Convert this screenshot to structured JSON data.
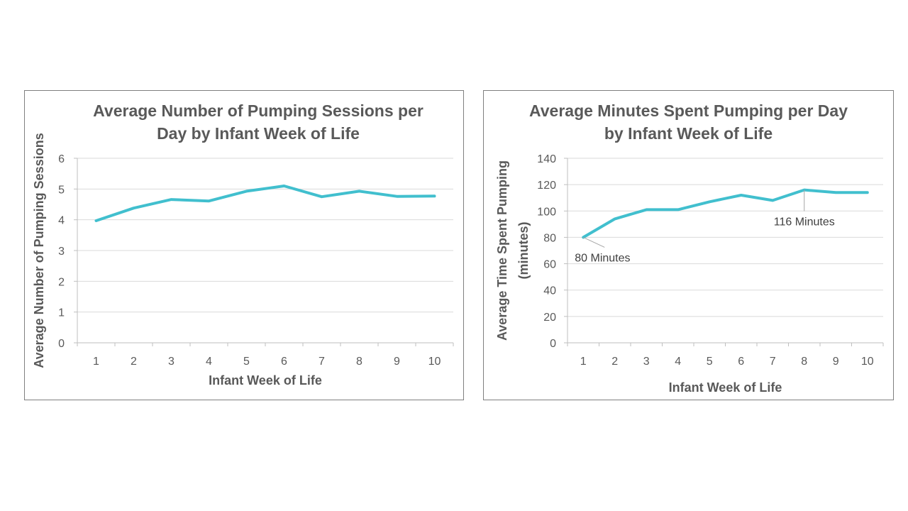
{
  "chart_data": [
    {
      "type": "line",
      "title_lines": [
        "Average Number of Pumping Sessions per",
        "Day by Infant Week of Life"
      ],
      "xlabel": "Infant Week of Life",
      "ylabel_lines": [
        "Average Number of Pumping Sessions"
      ],
      "categories": [
        "1",
        "2",
        "3",
        "4",
        "5",
        "6",
        "7",
        "8",
        "9",
        "10"
      ],
      "series": [
        {
          "values": [
            3.97,
            4.38,
            4.66,
            4.61,
            4.93,
            5.1,
            4.75,
            4.93,
            4.76,
            4.77
          ]
        }
      ],
      "ylim": [
        0,
        6
      ],
      "yticks": [
        0,
        1,
        2,
        3,
        4,
        5,
        6
      ],
      "grid": true,
      "line_color": "#41BFCE",
      "annotations": []
    },
    {
      "type": "line",
      "title_lines": [
        "Average Minutes Spent Pumping per Day",
        "by Infant Week of Life"
      ],
      "xlabel": "Infant Week of Life",
      "ylabel_lines": [
        "Average Time Spent Pumping",
        "(minutes)"
      ],
      "categories": [
        "1",
        "2",
        "3",
        "4",
        "5",
        "6",
        "7",
        "8",
        "9",
        "10"
      ],
      "series": [
        {
          "values": [
            80,
            94,
            101,
            101,
            107,
            112,
            108,
            116,
            114,
            114
          ]
        }
      ],
      "ylim": [
        0,
        140
      ],
      "yticks": [
        0,
        20,
        40,
        60,
        80,
        100,
        120,
        140
      ],
      "grid": true,
      "line_color": "#41BFCE",
      "annotations": [
        {
          "text": "80 Minutes",
          "point_index": 0,
          "placement": "below-right"
        },
        {
          "text": "116 Minutes",
          "point_index": 7,
          "placement": "below"
        }
      ]
    }
  ]
}
